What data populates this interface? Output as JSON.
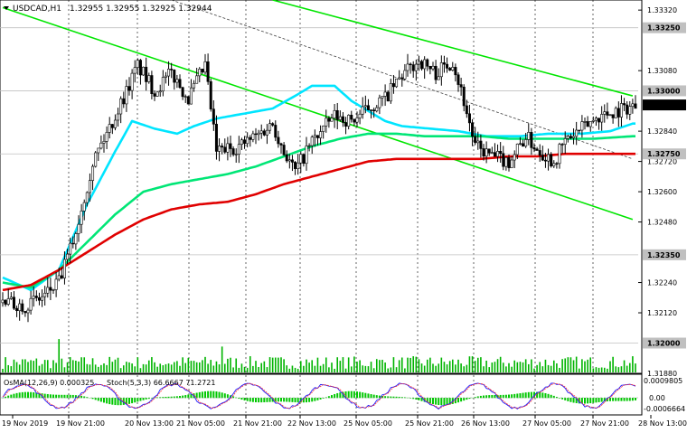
{
  "header": {
    "symbol_label": "USDCAD,H1",
    "ohlc_label": "1.32955 1.32955 1.32925 1.32944"
  },
  "indicator": {
    "osma_label": "OsMA(12,26,9) 0.000325",
    "stoch_label": "Stoch(5,3,3) 66.6667 71.2721",
    "scale_top": "0.0009805",
    "scale_mid": "0.00",
    "scale_bottom": "-0.0006664"
  },
  "chart_data": {
    "type": "candlestick",
    "symbol": "USDCAD",
    "timeframe": "H1",
    "last_price": 1.32944,
    "ylim": [
      1.3188,
      1.3336
    ],
    "y_ticks": [
      1.3332,
      1.3308,
      1.3284,
      1.3272,
      1.326,
      1.3248,
      1.3224,
      1.3212,
      1.3188
    ],
    "highlighted_levels": [
      {
        "value": 1.3325,
        "label": "1.33250"
      },
      {
        "value": 1.33,
        "label": "1.33000"
      },
      {
        "value": 1.32944,
        "label": "1.32944",
        "role": "current"
      },
      {
        "value": 1.3275,
        "label": "1.32750"
      },
      {
        "value": 1.3235,
        "label": "1.32350"
      },
      {
        "value": 1.32,
        "label": "1.32000"
      }
    ],
    "x_labels": [
      "19 Nov 2019",
      "19 Nov 21:00",
      "20 Nov 13:00",
      "21 Nov 05:00",
      "21 Nov 21:00",
      "22 Nov 13:00",
      "25 Nov 05:00",
      "25 Nov 21:00",
      "26 Nov 13:00",
      "27 Nov 05:00",
      "27 Nov 21:00",
      "28 Nov 13:00"
    ],
    "price_path": [
      [
        0,
        1.3216
      ],
      [
        8,
        1.3215
      ],
      [
        14,
        1.3218
      ],
      [
        20,
        1.3224
      ],
      [
        26,
        1.3244
      ],
      [
        32,
        1.3272
      ],
      [
        40,
        1.329
      ],
      [
        48,
        1.331
      ],
      [
        54,
        1.33
      ],
      [
        60,
        1.3307
      ],
      [
        66,
        1.3297
      ],
      [
        72,
        1.331
      ],
      [
        76,
        1.3276
      ],
      [
        84,
        1.3278
      ],
      [
        90,
        1.3282
      ],
      [
        96,
        1.3287
      ],
      [
        100,
        1.3276
      ],
      [
        104,
        1.3268
      ],
      [
        110,
        1.328
      ],
      [
        118,
        1.329
      ],
      [
        124,
        1.3288
      ],
      [
        130,
        1.3293
      ],
      [
        136,
        1.3297
      ],
      [
        142,
        1.3306
      ],
      [
        148,
        1.3312
      ],
      [
        154,
        1.3307
      ],
      [
        160,
        1.3312
      ],
      [
        164,
        1.3296
      ],
      [
        168,
        1.3278
      ],
      [
        174,
        1.3274
      ],
      [
        180,
        1.3272
      ],
      [
        186,
        1.3282
      ],
      [
        190,
        1.3277
      ],
      [
        196,
        1.3272
      ],
      [
        200,
        1.328
      ],
      [
        206,
        1.3285
      ],
      [
        212,
        1.329
      ],
      [
        218,
        1.3292
      ],
      [
        224,
        1.3294
      ]
    ],
    "series": [
      {
        "name": "MA fast",
        "color": "#00e5ff",
        "points": [
          [
            0,
            1.3226
          ],
          [
            10,
            1.3221
          ],
          [
            20,
            1.3229
          ],
          [
            30,
            1.3255
          ],
          [
            40,
            1.3276
          ],
          [
            46,
            1.3288
          ],
          [
            54,
            1.3285
          ],
          [
            62,
            1.3283
          ],
          [
            68,
            1.3286
          ],
          [
            76,
            1.3289
          ],
          [
            86,
            1.3291
          ],
          [
            96,
            1.3293
          ],
          [
            104,
            1.3298
          ],
          [
            110,
            1.3302
          ],
          [
            118,
            1.3302
          ],
          [
            124,
            1.3296
          ],
          [
            130,
            1.3292
          ],
          [
            136,
            1.3288
          ],
          [
            142,
            1.3286
          ],
          [
            152,
            1.3285
          ],
          [
            162,
            1.3284
          ],
          [
            172,
            1.3282
          ],
          [
            184,
            1.3282
          ],
          [
            194,
            1.3283
          ],
          [
            206,
            1.3283
          ],
          [
            216,
            1.3284
          ],
          [
            224,
            1.3287
          ]
        ]
      },
      {
        "name": "MA medium",
        "color": "#00e676",
        "points": [
          [
            0,
            1.3224
          ],
          [
            10,
            1.3222
          ],
          [
            20,
            1.3229
          ],
          [
            30,
            1.324
          ],
          [
            40,
            1.3251
          ],
          [
            50,
            1.326
          ],
          [
            60,
            1.3263
          ],
          [
            70,
            1.3265
          ],
          [
            80,
            1.3267
          ],
          [
            90,
            1.327
          ],
          [
            100,
            1.3274
          ],
          [
            110,
            1.3278
          ],
          [
            120,
            1.3281
          ],
          [
            130,
            1.3283
          ],
          [
            140,
            1.3283
          ],
          [
            150,
            1.3282
          ],
          [
            160,
            1.3282
          ],
          [
            170,
            1.3282
          ],
          [
            180,
            1.3281
          ],
          [
            190,
            1.3281
          ],
          [
            200,
            1.3281
          ],
          [
            210,
            1.3281
          ],
          [
            224,
            1.3282
          ]
        ]
      },
      {
        "name": "MA slow",
        "color": "#e00000",
        "points": [
          [
            0,
            1.3221
          ],
          [
            10,
            1.3223
          ],
          [
            20,
            1.3229
          ],
          [
            30,
            1.3236
          ],
          [
            40,
            1.3243
          ],
          [
            50,
            1.3249
          ],
          [
            60,
            1.3253
          ],
          [
            70,
            1.3255
          ],
          [
            80,
            1.3256
          ],
          [
            90,
            1.3259
          ],
          [
            100,
            1.3263
          ],
          [
            110,
            1.3266
          ],
          [
            120,
            1.3269
          ],
          [
            130,
            1.3272
          ],
          [
            140,
            1.3273
          ],
          [
            150,
            1.3273
          ],
          [
            160,
            1.3273
          ],
          [
            170,
            1.3273
          ],
          [
            180,
            1.3274
          ],
          [
            190,
            1.3274
          ],
          [
            200,
            1.3275
          ],
          [
            210,
            1.3275
          ],
          [
            224,
            1.3275
          ]
        ]
      }
    ],
    "channel_lines": [
      {
        "name": "upper channel",
        "color": "#00e600",
        "points": [
          [
            96,
            1.3336
          ],
          [
            224,
            1.3298
          ]
        ]
      },
      {
        "name": "lower channel",
        "color": "#00e600",
        "points": [
          [
            0,
            1.3333
          ],
          [
            224,
            1.3249
          ]
        ]
      },
      {
        "name": "trend line",
        "color": "#404040",
        "style": "dashed",
        "points": [
          [
            60,
            1.3336
          ],
          [
            224,
            1.3273
          ]
        ]
      }
    ],
    "grid": true
  }
}
